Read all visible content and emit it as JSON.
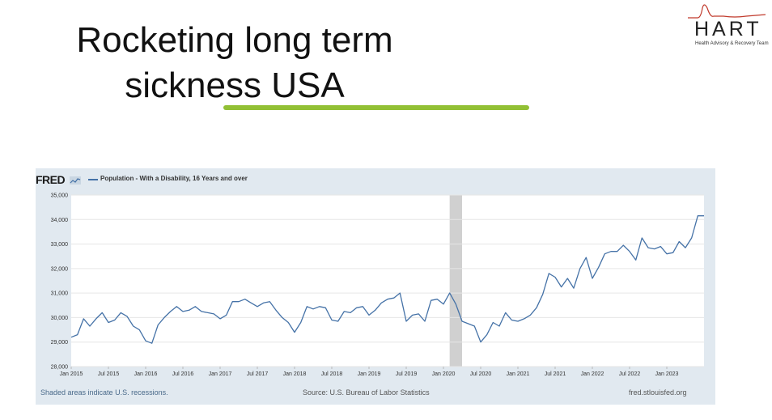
{
  "slide": {
    "title_line1": "Rocketing long term",
    "title_line2": "sickness USA"
  },
  "logo": {
    "name": "HART",
    "subtitle": "Health Advisory & Recovery Team",
    "accent_color": "#c0392b"
  },
  "fred": {
    "brand": "FRED",
    "icon": "fred-chart-icon",
    "footer_left": "Shaded areas indicate U.S. recessions.",
    "footer_center": "Source: U.S. Bureau of Labor Statistics",
    "footer_right": "fred.stlouisfed.org"
  },
  "chart_data": {
    "type": "line",
    "legend": [
      "Population - With a Disability, 16 Years and over"
    ],
    "ylim": [
      28000,
      35000
    ],
    "yticks": [
      28000,
      29000,
      30000,
      31000,
      32000,
      33000,
      34000,
      35000
    ],
    "ytick_labels": [
      "28,000",
      "29,000",
      "30,000",
      "31,000",
      "32,000",
      "33,000",
      "34,000",
      "35,000"
    ],
    "xlim": [
      "2015-01",
      "2023-07"
    ],
    "xtick_labels": [
      "Jan 2015",
      "Jul 2015",
      "Jan 2016",
      "Jul 2016",
      "Jan 2017",
      "Jul 2017",
      "Jan 2018",
      "Jul 2018",
      "Jan 2019",
      "Jul 2019",
      "Jan 2020",
      "Jul 2020",
      "Jan 2021",
      "Jul 2021",
      "Jan 2022",
      "Jul 2022",
      "Jan 2023"
    ],
    "recessions": [
      {
        "start": "2020-02",
        "end": "2020-04"
      }
    ],
    "line_color": "#4572a7",
    "grid": true,
    "series": [
      {
        "name": "Population - With a Disability, 16 Years and over",
        "x": [
          "2015-01",
          "2015-02",
          "2015-03",
          "2015-04",
          "2015-05",
          "2015-06",
          "2015-07",
          "2015-08",
          "2015-09",
          "2015-10",
          "2015-11",
          "2015-12",
          "2016-01",
          "2016-02",
          "2016-03",
          "2016-04",
          "2016-05",
          "2016-06",
          "2016-07",
          "2016-08",
          "2016-09",
          "2016-10",
          "2016-11",
          "2016-12",
          "2017-01",
          "2017-02",
          "2017-03",
          "2017-04",
          "2017-05",
          "2017-06",
          "2017-07",
          "2017-08",
          "2017-09",
          "2017-10",
          "2017-11",
          "2017-12",
          "2018-01",
          "2018-02",
          "2018-03",
          "2018-04",
          "2018-05",
          "2018-06",
          "2018-07",
          "2018-08",
          "2018-09",
          "2018-10",
          "2018-11",
          "2018-12",
          "2019-01",
          "2019-02",
          "2019-03",
          "2019-04",
          "2019-05",
          "2019-06",
          "2019-07",
          "2019-08",
          "2019-09",
          "2019-10",
          "2019-11",
          "2019-12",
          "2020-01",
          "2020-02",
          "2020-03",
          "2020-04",
          "2020-05",
          "2020-06",
          "2020-07",
          "2020-08",
          "2020-09",
          "2020-10",
          "2020-11",
          "2020-12",
          "2021-01",
          "2021-02",
          "2021-03",
          "2021-04",
          "2021-05",
          "2021-06",
          "2021-07",
          "2021-08",
          "2021-09",
          "2021-10",
          "2021-11",
          "2021-12",
          "2022-01",
          "2022-02",
          "2022-03",
          "2022-04",
          "2022-05",
          "2022-06",
          "2022-07",
          "2022-08",
          "2022-09",
          "2022-10",
          "2022-11",
          "2022-12",
          "2023-01",
          "2023-02",
          "2023-03",
          "2023-04",
          "2023-05",
          "2023-06",
          "2023-07"
        ],
        "values": [
          29200,
          29300,
          29950,
          29650,
          29950,
          30200,
          29800,
          29900,
          30200,
          30050,
          29650,
          29500,
          29050,
          28950,
          29700,
          30000,
          30250,
          30450,
          30250,
          30300,
          30450,
          30250,
          30200,
          30150,
          29950,
          30100,
          30650,
          30650,
          30750,
          30600,
          30450,
          30600,
          30650,
          30300,
          30000,
          29800,
          29400,
          29800,
          30450,
          30350,
          30450,
          30400,
          29900,
          29850,
          30250,
          30200,
          30400,
          30450,
          30100,
          30300,
          30600,
          30750,
          30800,
          31000,
          29850,
          30100,
          30150,
          29850,
          30700,
          30750,
          30550,
          31000,
          30550,
          29850,
          29750,
          29650,
          29000,
          29300,
          29800,
          29650,
          30200,
          29900,
          29850,
          29950,
          30100,
          30400,
          30950,
          31800,
          31650,
          31250,
          31600,
          31200,
          32000,
          32450,
          31600,
          32050,
          32600,
          32700,
          32700,
          32950,
          32700,
          32350,
          33250,
          32850,
          32800,
          32900,
          32600,
          32650,
          33100,
          32850,
          33250,
          34150,
          34150
        ]
      }
    ]
  }
}
